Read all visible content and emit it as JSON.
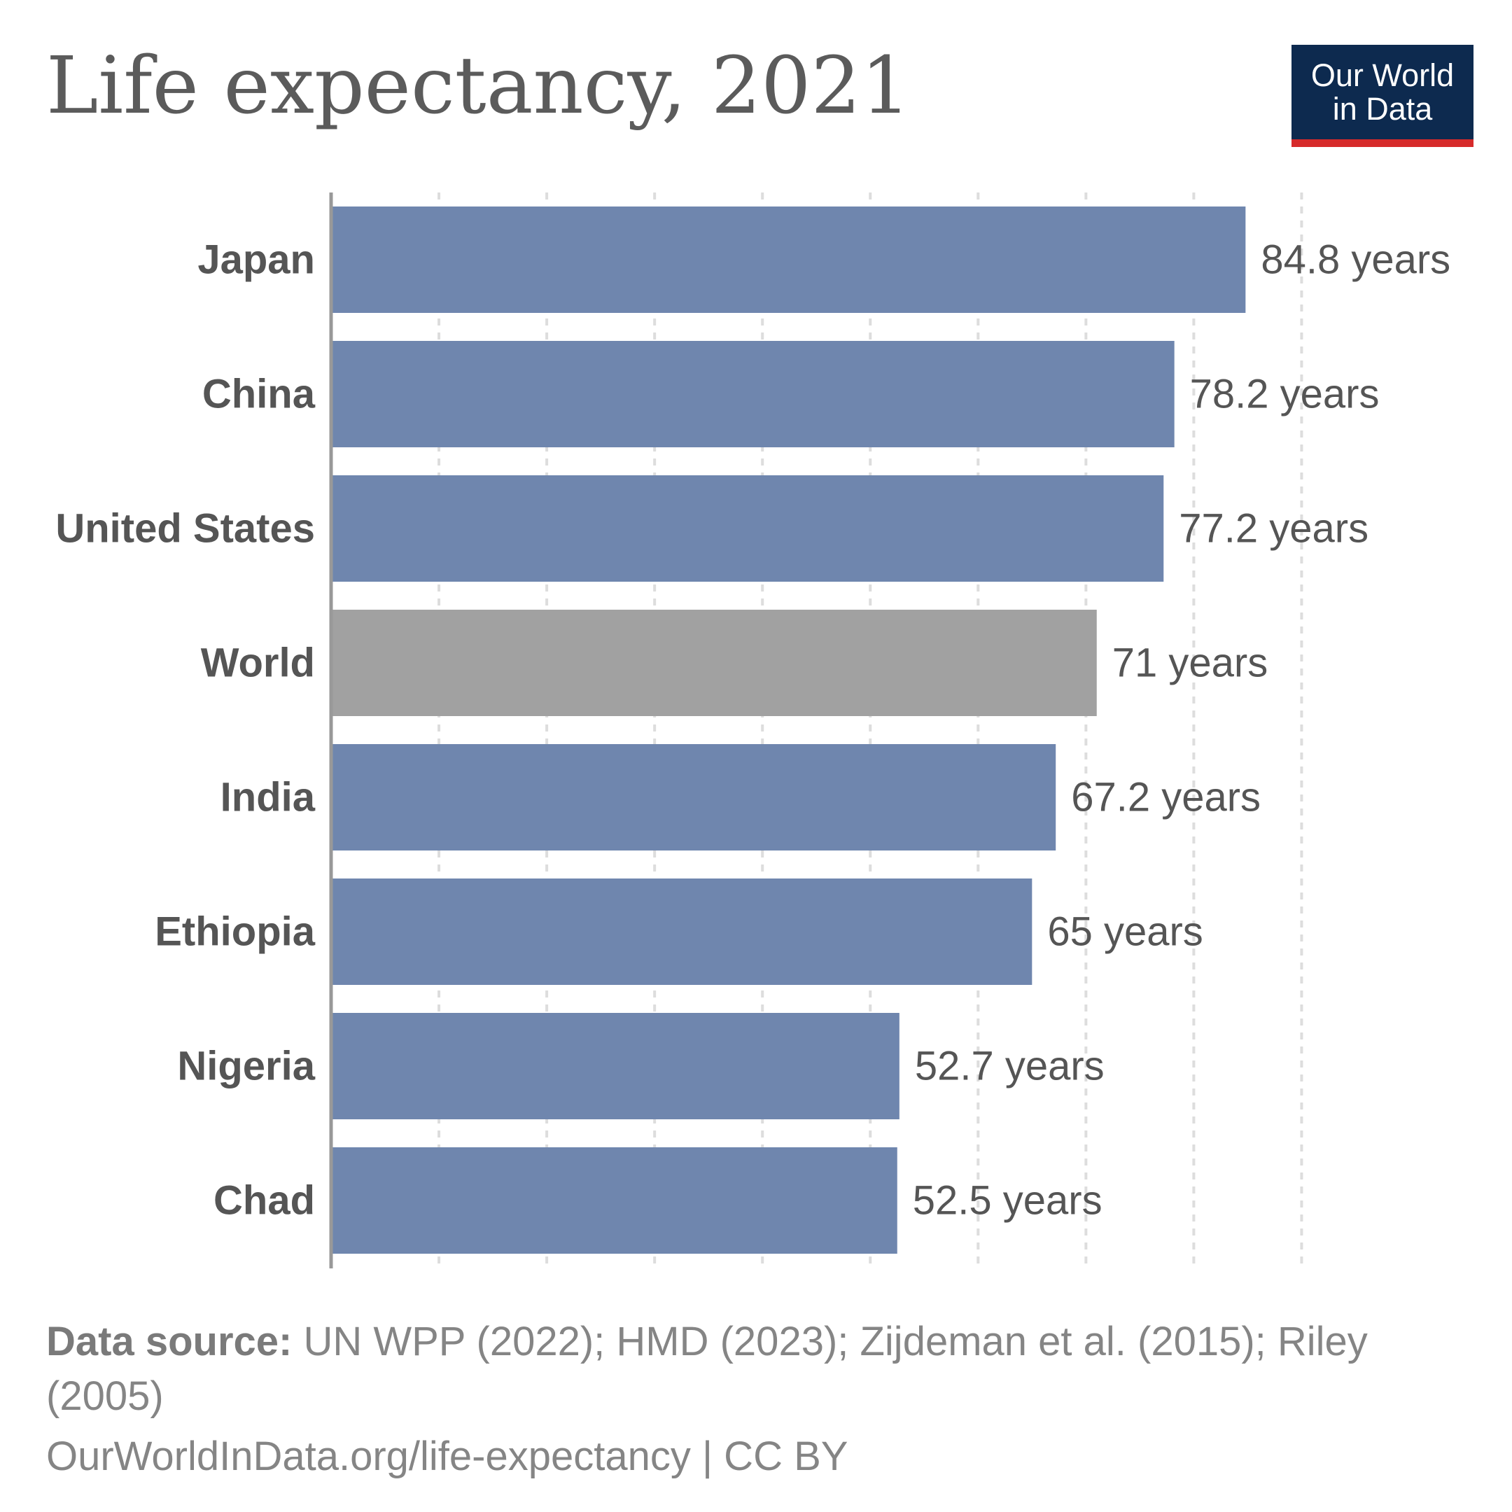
{
  "header": {
    "title": "Life expectancy, 2021",
    "logo_line1": "Our World",
    "logo_line2": "in Data"
  },
  "colors": {
    "bar": "#6f86ae",
    "world_bar": "#a1a1a1",
    "logo_bg": "#0d2a4f",
    "logo_accent": "#d62a2a",
    "text": "#555555",
    "grid": "#dddddd",
    "axis": "#999999"
  },
  "chart_data": {
    "type": "bar",
    "orientation": "horizontal",
    "title": "Life expectancy, 2021",
    "categories": [
      "Japan",
      "China",
      "United States",
      "World",
      "India",
      "Ethiopia",
      "Nigeria",
      "Chad"
    ],
    "values": [
      84.8,
      78.2,
      77.2,
      71,
      67.2,
      65,
      52.7,
      52.5
    ],
    "value_labels": [
      "84.8 years",
      "78.2 years",
      "77.2 years",
      "71 years",
      "67.2 years",
      "65 years",
      "52.7 years",
      "52.5 years"
    ],
    "highlight": "World",
    "unit": "years",
    "xlim": [
      0,
      90
    ],
    "grid_step": 10,
    "grid": true,
    "xlabel": "",
    "ylabel": ""
  },
  "footer": {
    "source_label": "Data source:",
    "source_text": " UN WPP (2022); HMD (2023); Zijdeman et al. (2015); Riley (2005)",
    "url_text": "OurWorldInData.org/life-expectancy | CC BY"
  }
}
